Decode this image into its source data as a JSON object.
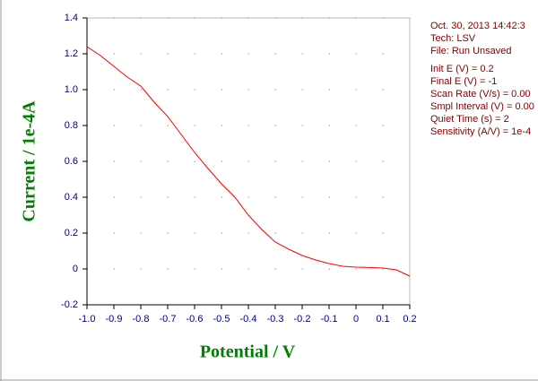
{
  "chart_data": {
    "type": "line",
    "xlabel": "Potential / V",
    "ylabel": "Current / 1e-4A",
    "x": [
      -1.0,
      -0.95,
      -0.9,
      -0.85,
      -0.8,
      -0.75,
      -0.7,
      -0.65,
      -0.6,
      -0.55,
      -0.5,
      -0.45,
      -0.4,
      -0.35,
      -0.3,
      -0.25,
      -0.2,
      -0.15,
      -0.1,
      -0.05,
      0,
      0.05,
      0.1,
      0.15,
      0.2
    ],
    "series": [
      {
        "color": "#ff0000",
        "values": [
          1.24,
          1.19,
          1.13,
          1.07,
          1.02,
          0.93,
          0.85,
          0.75,
          0.65,
          0.56,
          0.475,
          0.4,
          0.3,
          0.22,
          0.15,
          0.11,
          0.075,
          0.05,
          0.03,
          0.015,
          0.01,
          0.008,
          0.005,
          -0.005,
          -0.04
        ]
      }
    ],
    "xlim": [
      -1.0,
      0.2
    ],
    "xticks": [
      {
        "value": -1,
        "label": "-1.0"
      },
      -0.9,
      -0.8,
      -0.7,
      -0.6,
      -0.5,
      -0.4,
      -0.3,
      -0.2,
      -0.1,
      0,
      0.1,
      0.2
    ],
    "ylim": [
      -0.2,
      1.4
    ],
    "yticks": [
      -0.2,
      0,
      0.2,
      0.4,
      0.6,
      0.8,
      {
        "value": 1,
        "label": "1.0"
      },
      1.2,
      1.4
    ],
    "grid": true,
    "info": {
      "date": "Oct. 30, 2013   14:42:3",
      "lines": [
        "Tech: LSV",
        "File: Run Unsaved"
      ],
      "params": [
        "Init E (V) = 0.2",
        "Final E (V) = -1",
        "Scan Rate (V/s) = 0.00",
        "Smpl Interval (V) = 0.00",
        "Quiet Time (s) = 2",
        "Sensitivity (A/V) = 1e-4"
      ]
    }
  }
}
